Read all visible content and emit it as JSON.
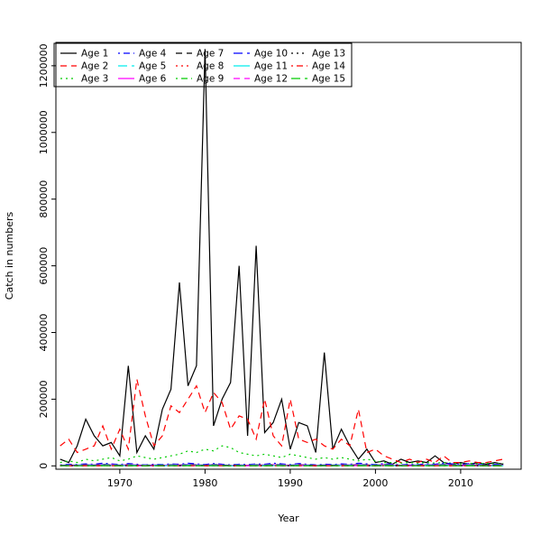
{
  "chart_data": {
    "type": "line",
    "title": "",
    "xlabel": "Year",
    "ylabel": "Catch in numbers",
    "legend_position": "top-left",
    "grid": false,
    "x_ticks": [
      1970,
      1980,
      1990,
      2000,
      2010
    ],
    "y_ticks": [
      0,
      200000,
      400000,
      600000,
      800000,
      1000000,
      1200000
    ],
    "xlim": [
      1962.5,
      2017.1
    ],
    "ylim": [
      -10000,
      1270000
    ],
    "years": [
      1963,
      1964,
      1965,
      1966,
      1967,
      1968,
      1969,
      1970,
      1971,
      1972,
      1973,
      1974,
      1975,
      1976,
      1977,
      1978,
      1979,
      1980,
      1981,
      1982,
      1983,
      1984,
      1985,
      1986,
      1987,
      1988,
      1989,
      1990,
      1991,
      1992,
      1993,
      1994,
      1995,
      1996,
      1997,
      1998,
      1999,
      2000,
      2001,
      2002,
      2003,
      2004,
      2005,
      2006,
      2007,
      2008,
      2009,
      2010,
      2011,
      2012,
      2013,
      2014,
      2015
    ],
    "series": [
      {
        "name": "Age 1",
        "color": "#000000",
        "linetype": "solid",
        "values": [
          20000,
          10000,
          60000,
          140000,
          90000,
          60000,
          70000,
          30000,
          300000,
          40000,
          90000,
          50000,
          170000,
          230000,
          550000,
          240000,
          300000,
          1250000,
          120000,
          200000,
          250000,
          600000,
          90000,
          660000,
          100000,
          130000,
          200000,
          50000,
          130000,
          120000,
          40000,
          340000,
          50000,
          110000,
          60000,
          20000,
          50000,
          10000,
          15000,
          5000,
          20000,
          10000,
          15000,
          10000,
          30000,
          10000,
          5000,
          10000,
          5000,
          10000,
          5000,
          10000,
          5000
        ]
      },
      {
        "name": "Age 2",
        "color": "#FF0000",
        "linetype": "dashed",
        "values": [
          60000,
          80000,
          40000,
          50000,
          60000,
          120000,
          50000,
          110000,
          50000,
          260000,
          150000,
          60000,
          90000,
          180000,
          160000,
          200000,
          240000,
          160000,
          220000,
          190000,
          110000,
          150000,
          140000,
          80000,
          200000,
          90000,
          60000,
          200000,
          80000,
          70000,
          80000,
          60000,
          50000,
          80000,
          60000,
          170000,
          40000,
          50000,
          30000,
          20000,
          10000,
          20000,
          10000,
          20000,
          10000,
          30000,
          10000,
          10000,
          15000,
          10000,
          10000,
          15000,
          20000
        ]
      },
      {
        "name": "Age 3",
        "color": "#00CC00",
        "linetype": "dotted",
        "values": [
          10000,
          15000,
          10000,
          20000,
          15000,
          20000,
          25000,
          15000,
          20000,
          30000,
          25000,
          20000,
          25000,
          30000,
          35000,
          45000,
          40000,
          50000,
          45000,
          60000,
          55000,
          40000,
          35000,
          30000,
          35000,
          30000,
          25000,
          35000,
          30000,
          25000,
          20000,
          25000,
          20000,
          25000,
          20000,
          15000,
          20000,
          15000,
          10000,
          10000,
          8000,
          10000,
          8000,
          10000,
          8000,
          10000,
          8000,
          6000,
          8000,
          6000,
          8000,
          6000,
          8000
        ]
      },
      {
        "name": "Age 4",
        "color": "#0000FF",
        "linetype": "dotdash",
        "values": [
          3000,
          5000,
          4000,
          6000,
          5000,
          8000,
          6000,
          4000,
          7000,
          5000,
          3000,
          5000,
          4000,
          6000,
          5000,
          8000,
          6000,
          4000,
          7000,
          5000,
          3000,
          5000,
          4000,
          6000,
          5000,
          8000,
          6000,
          4000,
          7000,
          5000,
          3000,
          5000,
          4000,
          6000,
          5000,
          8000,
          6000,
          4000,
          7000,
          5000,
          3000,
          5000,
          4000,
          6000,
          5000,
          8000,
          6000,
          4000,
          7000,
          5000,
          3000,
          5000,
          4000
        ]
      },
      {
        "name": "Age 5",
        "color": "#00EEEE",
        "linetype": "longdash",
        "values": [
          2000,
          3000,
          2500,
          4000,
          3000,
          5000,
          3500,
          2500,
          4500,
          3000,
          2000,
          3000,
          2500,
          4000,
          3000,
          5000,
          3500,
          2500,
          4500,
          3000,
          2000,
          3000,
          2500,
          4000,
          3000,
          5000,
          3500,
          2500,
          4500,
          3000,
          2000,
          3000,
          2500,
          4000,
          3000,
          5000,
          3500,
          2500,
          4500,
          3000,
          2000,
          3000,
          2500,
          4000,
          3000,
          5000,
          3500,
          2500,
          4500,
          3000,
          2000,
          3000,
          2500
        ]
      },
      {
        "name": "Age 6",
        "color": "#FF00FF",
        "linetype": "solid",
        "values": [
          1500,
          2500,
          2000,
          3000,
          2500,
          3500,
          3000,
          2000,
          3500,
          2500,
          1500,
          2500,
          2000,
          3000,
          2500,
          3500,
          3000,
          2000,
          3500,
          2500,
          1500,
          2500,
          2000,
          3000,
          2500,
          3500,
          3000,
          2000,
          3500,
          2500,
          1500,
          2500,
          2000,
          3000,
          2500,
          3500,
          3000,
          2000,
          3500,
          2500,
          1500,
          2500,
          2000,
          3000,
          2500,
          3500,
          3000,
          2000,
          3500,
          2500,
          1500,
          2500,
          2000
        ]
      },
      {
        "name": "Age 7",
        "color": "#000000",
        "linetype": "dashed",
        "values": [
          1000,
          2000,
          1500,
          2500,
          2000,
          3000,
          2500,
          1500,
          3000,
          2000,
          1000,
          2000,
          1500,
          2500,
          2000,
          3000,
          2500,
          1500,
          3000,
          2000,
          1000,
          2000,
          1500,
          2500,
          2000,
          3000,
          2500,
          1500,
          3000,
          2000,
          1000,
          2000,
          1500,
          2500,
          2000,
          3000,
          2500,
          1500,
          3000,
          2000,
          1000,
          2000,
          1500,
          2500,
          2000,
          3000,
          2500,
          1500,
          3000,
          2000,
          1000,
          2000,
          1500
        ]
      },
      {
        "name": "Age 8",
        "color": "#FF0000",
        "linetype": "dotted",
        "values": [
          800,
          1500,
          1200,
          2000,
          1500,
          2500,
          2000,
          1200,
          2500,
          1500,
          800,
          1500,
          1200,
          2000,
          1500,
          2500,
          2000,
          1200,
          2500,
          1500,
          800,
          1500,
          1200,
          2000,
          1500,
          2500,
          2000,
          1200,
          2500,
          1500,
          800,
          1500,
          1200,
          2000,
          1500,
          2500,
          2000,
          1200,
          2500,
          1500,
          800,
          1500,
          1200,
          2000,
          1500,
          2500,
          2000,
          1200,
          2500,
          1500,
          800,
          1500,
          1200
        ]
      },
      {
        "name": "Age 9",
        "color": "#00CC00",
        "linetype": "dotdash",
        "values": [
          600,
          1200,
          900,
          1500,
          1200,
          2000,
          1500,
          900,
          2000,
          1200,
          600,
          1200,
          900,
          1500,
          1200,
          2000,
          1500,
          900,
          2000,
          1200,
          600,
          1200,
          900,
          1500,
          1200,
          2000,
          1500,
          900,
          2000,
          1200,
          600,
          1200,
          900,
          1500,
          1200,
          2000,
          1500,
          900,
          2000,
          1200,
          600,
          1200,
          900,
          1500,
          1200,
          2000,
          1500,
          900,
          2000,
          1200,
          600,
          1200,
          900
        ]
      },
      {
        "name": "Age 10",
        "color": "#0000FF",
        "linetype": "longdash",
        "values": [
          500,
          1000,
          800,
          1200,
          1000,
          1500,
          1200,
          800,
          1500,
          1000,
          500,
          1000,
          800,
          1200,
          1000,
          1500,
          1200,
          800,
          1500,
          1000,
          500,
          1000,
          800,
          1200,
          1000,
          1500,
          1200,
          800,
          1500,
          1000,
          500,
          1000,
          800,
          1200,
          1000,
          1500,
          1200,
          800,
          1500,
          1000,
          500,
          1000,
          800,
          1200,
          1000,
          1500,
          1200,
          800,
          1500,
          1000,
          500,
          1000,
          800
        ]
      },
      {
        "name": "Age 11",
        "color": "#00EEEE",
        "linetype": "solid",
        "values": [
          400,
          800,
          600,
          1000,
          800,
          1200,
          1000,
          600,
          1200,
          800,
          400,
          800,
          600,
          1000,
          800,
          1200,
          1000,
          600,
          1200,
          800,
          400,
          800,
          600,
          1000,
          800,
          1200,
          1000,
          600,
          1200,
          800,
          400,
          800,
          600,
          1000,
          800,
          1200,
          1000,
          600,
          1200,
          800,
          400,
          800,
          600,
          1000,
          800,
          1200,
          1000,
          600,
          1200,
          800,
          400,
          800,
          600
        ]
      },
      {
        "name": "Age 12",
        "color": "#FF00FF",
        "linetype": "dashed",
        "values": [
          300,
          600,
          500,
          800,
          600,
          1000,
          800,
          500,
          1000,
          600,
          300,
          600,
          500,
          800,
          600,
          1000,
          800,
          500,
          1000,
          600,
          300,
          600,
          500,
          800,
          600,
          1000,
          800,
          500,
          1000,
          600,
          300,
          600,
          500,
          800,
          600,
          1000,
          800,
          500,
          1000,
          600,
          300,
          600,
          500,
          800,
          600,
          1000,
          800,
          500,
          1000,
          600,
          300,
          600,
          500
        ]
      },
      {
        "name": "Age 13",
        "color": "#000000",
        "linetype": "dotted",
        "values": [
          250,
          500,
          400,
          600,
          500,
          800,
          600,
          400,
          800,
          500,
          250,
          500,
          400,
          600,
          500,
          800,
          600,
          400,
          800,
          500,
          250,
          500,
          400,
          600,
          500,
          800,
          600,
          400,
          800,
          500,
          250,
          500,
          400,
          600,
          500,
          800,
          600,
          400,
          800,
          500,
          250,
          500,
          400,
          600,
          500,
          800,
          600,
          400,
          800,
          500,
          250,
          500,
          400
        ]
      },
      {
        "name": "Age 14",
        "color": "#FF0000",
        "linetype": "dotdash",
        "values": [
          200,
          400,
          300,
          500,
          400,
          600,
          500,
          300,
          600,
          400,
          200,
          400,
          300,
          500,
          400,
          600,
          500,
          300,
          600,
          400,
          200,
          400,
          300,
          500,
          400,
          600,
          500,
          300,
          600,
          400,
          200,
          400,
          300,
          500,
          400,
          600,
          500,
          300,
          600,
          400,
          200,
          400,
          300,
          500,
          400,
          600,
          500,
          300,
          600,
          400,
          200,
          400,
          300
        ]
      },
      {
        "name": "Age 15",
        "color": "#00CC00",
        "linetype": "longdash",
        "values": [
          150,
          300,
          250,
          400,
          300,
          500,
          400,
          250,
          500,
          300,
          150,
          300,
          250,
          400,
          300,
          500,
          400,
          250,
          500,
          300,
          150,
          300,
          250,
          400,
          300,
          500,
          400,
          250,
          500,
          300,
          150,
          300,
          250,
          400,
          300,
          500,
          400,
          250,
          500,
          300,
          150,
          300,
          250,
          400,
          300,
          500,
          400,
          250,
          500,
          300,
          150,
          300,
          250
        ]
      }
    ]
  }
}
